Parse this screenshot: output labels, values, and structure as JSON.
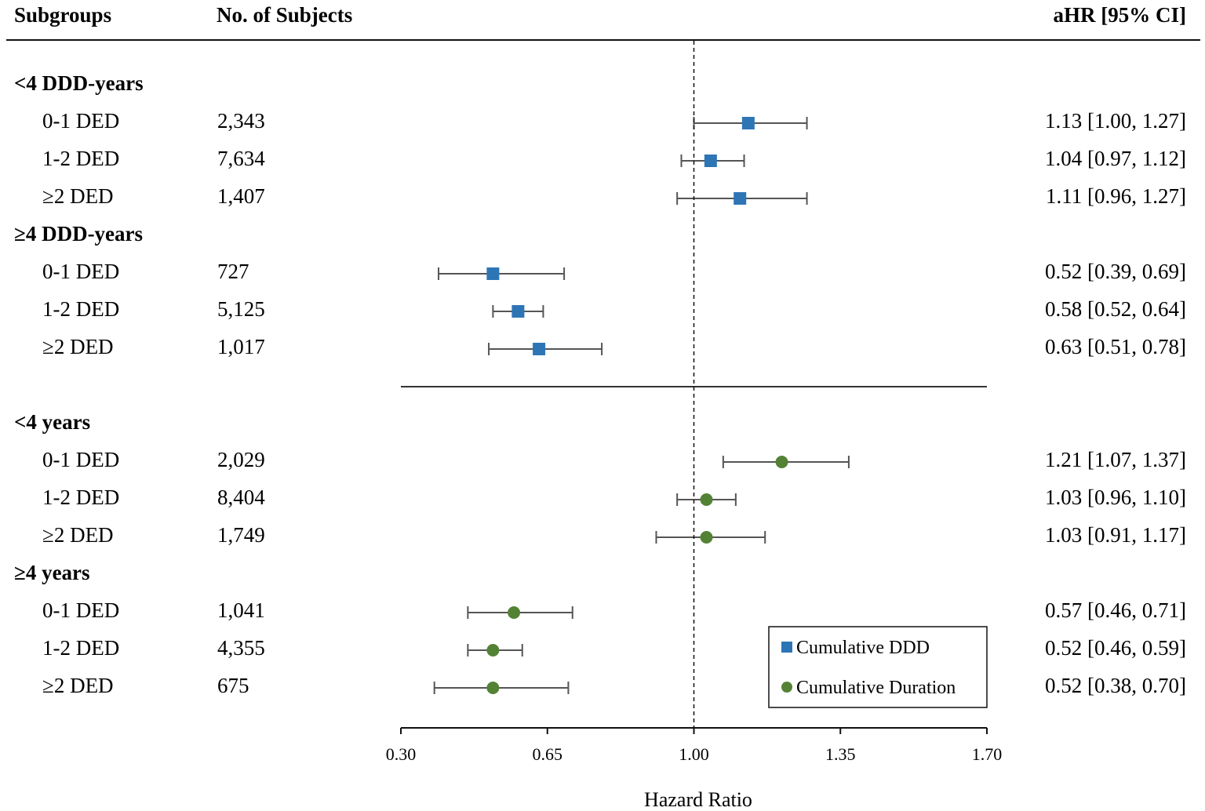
{
  "chart_data": {
    "type": "forest",
    "headers": {
      "subgroups": "Subgroups",
      "subjects": "No. of Subjects",
      "estimate": "aHR [95% CI]"
    },
    "xlabel": "Hazard Ratio",
    "xlim": [
      0.3,
      1.7
    ],
    "xticks": [
      "0.30",
      "0.65",
      "1.00",
      "1.35",
      "1.70"
    ],
    "reference_line": 1.0,
    "legend": {
      "placement": "bottom-right",
      "entries": [
        {
          "label": "Cumulative DDD",
          "marker": "square",
          "color": "#2e75b6"
        },
        {
          "label": "Cumulative Duration",
          "marker": "circle",
          "color": "#548235"
        }
      ]
    },
    "sections": [
      {
        "series": "Cumulative DDD",
        "groups": [
          {
            "label": "<4 DDD-years",
            "rows": [
              {
                "label": "0-1 DED",
                "n": "2,343",
                "text": "1.13 [1.00, 1.27]",
                "hr": 1.13,
                "lo": 1.0,
                "hi": 1.27
              },
              {
                "label": "1-2 DED",
                "n": "7,634",
                "text": "1.04 [0.97, 1.12]",
                "hr": 1.04,
                "lo": 0.97,
                "hi": 1.12
              },
              {
                "label": "≥2 DED",
                "n": "1,407",
                "text": "1.11 [0.96, 1.27]",
                "hr": 1.11,
                "lo": 0.96,
                "hi": 1.27
              }
            ]
          },
          {
            "label": "≥4 DDD-years",
            "rows": [
              {
                "label": "0-1 DED",
                "n": "727",
                "text": "0.52 [0.39, 0.69]",
                "hr": 0.52,
                "lo": 0.39,
                "hi": 0.69
              },
              {
                "label": "1-2 DED",
                "n": "5,125",
                "text": "0.58 [0.52, 0.64]",
                "hr": 0.58,
                "lo": 0.52,
                "hi": 0.64
              },
              {
                "label": "≥2 DED",
                "n": "1,017",
                "text": "0.63 [0.51, 0.78]",
                "hr": 0.63,
                "lo": 0.51,
                "hi": 0.78
              }
            ]
          }
        ]
      },
      {
        "series": "Cumulative Duration",
        "groups": [
          {
            "label": "<4 years",
            "rows": [
              {
                "label": "0-1 DED",
                "n": "2,029",
                "text": "1.21 [1.07, 1.37]",
                "hr": 1.21,
                "lo": 1.07,
                "hi": 1.37
              },
              {
                "label": "1-2 DED",
                "n": "8,404",
                "text": "1.03 [0.96, 1.10]",
                "hr": 1.03,
                "lo": 0.96,
                "hi": 1.1
              },
              {
                "label": "≥2 DED",
                "n": "1,749",
                "text": "1.03 [0.91, 1.17]",
                "hr": 1.03,
                "lo": 0.91,
                "hi": 1.17
              }
            ]
          },
          {
            "label": "≥4 years",
            "rows": [
              {
                "label": "0-1 DED",
                "n": "1,041",
                "text": "0.57 [0.46, 0.71]",
                "hr": 0.57,
                "lo": 0.46,
                "hi": 0.71
              },
              {
                "label": "1-2 DED",
                "n": "4,355",
                "text": "0.52 [0.46, 0.59]",
                "hr": 0.52,
                "lo": 0.46,
                "hi": 0.59
              },
              {
                "label": "≥2 DED",
                "n": "675",
                "text": "0.52 [0.38, 0.70]",
                "hr": 0.52,
                "lo": 0.38,
                "hi": 0.7
              }
            ]
          }
        ]
      }
    ]
  }
}
